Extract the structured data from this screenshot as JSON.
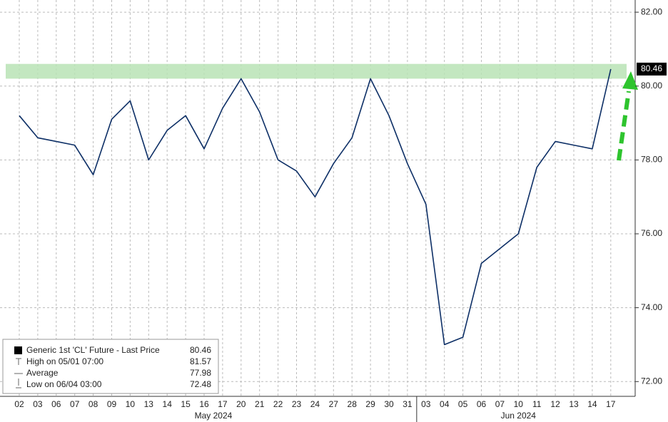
{
  "chart_data": {
    "type": "line",
    "category_groups": [
      {
        "label": "May 2024",
        "categories": [
          "02",
          "03",
          "06",
          "07",
          "08",
          "09",
          "10",
          "13",
          "14",
          "15",
          "16",
          "17",
          "20",
          "21",
          "22",
          "23",
          "24",
          "27",
          "28",
          "29",
          "30",
          "31"
        ]
      },
      {
        "label": "Jun 2024",
        "categories": [
          "03",
          "04",
          "05",
          "06",
          "07",
          "10",
          "11",
          "12",
          "13",
          "14",
          "17"
        ]
      }
    ],
    "series": [
      {
        "name": "Generic 1st 'CL' Future - Last Price",
        "color": "#0d2f66",
        "values": [
          79.2,
          78.6,
          78.5,
          78.4,
          77.6,
          79.1,
          79.6,
          78.0,
          78.8,
          79.2,
          78.3,
          79.4,
          80.2,
          79.3,
          78.0,
          77.7,
          77.0,
          77.9,
          78.6,
          80.2,
          79.2,
          77.9,
          76.8,
          73.0,
          73.2,
          75.2,
          75.6,
          76.0,
          77.8,
          78.5,
          78.4,
          78.3,
          80.46
        ]
      }
    ],
    "last_price": 80.46,
    "stats": [
      {
        "label": "High on 05/01 07:00",
        "value": 81.57
      },
      {
        "label": "Average",
        "value": 77.98
      },
      {
        "label": "Low on 06/04 03:00",
        "value": 72.48
      }
    ],
    "highlight_band": [
      80.2,
      80.6
    ],
    "highlight_color": "#b9e3b5",
    "ylim": [
      71.6,
      82.33
    ],
    "yticks": [
      {
        "value": 72,
        "label": "72.00"
      },
      {
        "value": 74,
        "label": "74.00"
      },
      {
        "value": 76,
        "label": "76.00"
      },
      {
        "value": 78,
        "label": "78.00"
      },
      {
        "value": 80,
        "label": "80.00"
      },
      {
        "value": 82,
        "label": "82.00"
      }
    ],
    "grid": true
  }
}
